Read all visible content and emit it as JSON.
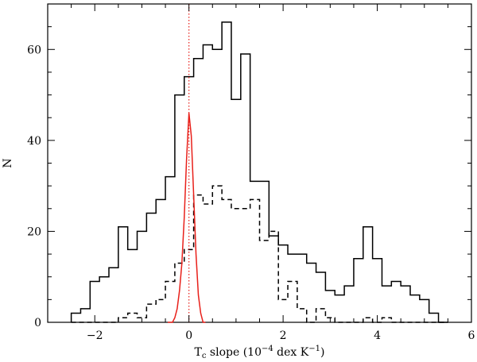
{
  "chart_data": {
    "type": "histogram",
    "xlabel": "T$_c$ slope (10$^{-4}$ dex K$^{-1}$)",
    "xlabel_parts": {
      "pre": "T",
      "sub": "c",
      "mid": " slope (10",
      "sup1": "−4",
      "mid2": " dex K",
      "sup2": "−1",
      "post": ")"
    },
    "ylabel": "N",
    "xlim": [
      -3,
      6
    ],
    "ylim": [
      0,
      70
    ],
    "xticks": [
      -2,
      0,
      2,
      4,
      6
    ],
    "yticks": [
      0,
      20,
      40,
      60
    ],
    "vline": {
      "x": 0,
      "color": "#e8201a",
      "style": "dotted"
    },
    "series": [
      {
        "style": "solid",
        "color": "#000000",
        "bin_edges": [
          -2.5,
          -2.3,
          -2.1,
          -1.9,
          -1.7,
          -1.5,
          -1.3,
          -1.1,
          -0.9,
          -0.7,
          -0.5,
          -0.3,
          -0.1,
          0.1,
          0.3,
          0.5,
          0.7,
          0.9,
          1.1,
          1.3,
          1.5,
          1.7,
          1.9,
          2.1,
          2.3,
          2.5,
          2.7,
          2.9,
          3.1,
          3.3,
          3.5,
          3.7,
          3.9,
          4.1,
          4.3,
          4.5,
          4.7,
          4.9,
          5.1,
          5.3,
          5.5
        ],
        "counts": [
          2,
          3,
          9,
          10,
          12,
          21,
          16,
          20,
          24,
          27,
          32,
          50,
          54,
          58,
          61,
          60,
          66,
          49,
          59,
          31,
          31,
          19,
          17,
          15,
          15,
          13,
          11,
          7,
          6,
          8,
          14,
          21,
          14,
          8,
          9,
          8,
          6,
          5,
          2,
          0
        ]
      },
      {
        "style": "dashed",
        "color": "#000000",
        "bin_edges": [
          -2.5,
          -2.3,
          -2.1,
          -1.9,
          -1.7,
          -1.5,
          -1.3,
          -1.1,
          -0.9,
          -0.7,
          -0.5,
          -0.3,
          -0.1,
          0.1,
          0.3,
          0.5,
          0.7,
          0.9,
          1.1,
          1.3,
          1.5,
          1.7,
          1.9,
          2.1,
          2.3,
          2.5,
          2.7,
          2.9,
          3.1,
          3.3,
          3.5,
          3.7,
          3.9,
          4.1,
          4.3,
          4.5,
          4.7,
          4.9,
          5.1,
          5.3,
          5.5
        ],
        "counts": [
          0,
          0,
          0,
          0,
          0,
          1,
          2,
          1,
          4,
          5,
          9,
          13,
          16,
          28,
          26,
          30,
          27,
          25,
          25,
          27,
          18,
          20,
          5,
          9,
          3,
          0,
          3,
          1,
          0,
          0,
          0,
          1,
          0,
          1,
          0,
          0,
          0,
          0,
          0,
          0
        ]
      },
      {
        "style": "solid",
        "color": "#e8201a",
        "x": [
          -0.45,
          -0.35,
          -0.3,
          -0.25,
          -0.2,
          -0.15,
          -0.1,
          -0.05,
          0.0,
          0.05,
          0.1,
          0.15,
          0.2,
          0.25,
          0.3,
          0.35
        ],
        "y": [
          0,
          0,
          1,
          3,
          7,
          13,
          23,
          36,
          46,
          41,
          28,
          15,
          6,
          2,
          0,
          0
        ]
      }
    ]
  }
}
